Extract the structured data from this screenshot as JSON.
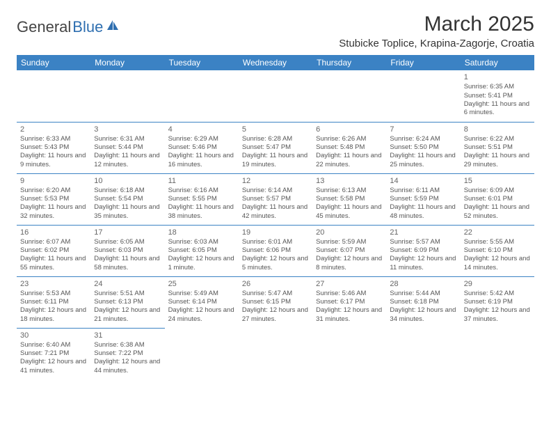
{
  "logo": {
    "part1": "General",
    "part2": "Blue"
  },
  "title": "March 2025",
  "location": "Stubicke Toplice, Krapina-Zagorje, Croatia",
  "colors": {
    "header_bg": "#3b82c4",
    "header_text": "#ffffff",
    "cell_border": "#3b82c4",
    "text": "#555555",
    "logo_blue": "#2f6fb0"
  },
  "weekdays": [
    "Sunday",
    "Monday",
    "Tuesday",
    "Wednesday",
    "Thursday",
    "Friday",
    "Saturday"
  ],
  "weeks": [
    [
      null,
      null,
      null,
      null,
      null,
      null,
      {
        "d": "1",
        "sr": "Sunrise: 6:35 AM",
        "ss": "Sunset: 5:41 PM",
        "dl": "Daylight: 11 hours and 6 minutes."
      }
    ],
    [
      {
        "d": "2",
        "sr": "Sunrise: 6:33 AM",
        "ss": "Sunset: 5:43 PM",
        "dl": "Daylight: 11 hours and 9 minutes."
      },
      {
        "d": "3",
        "sr": "Sunrise: 6:31 AM",
        "ss": "Sunset: 5:44 PM",
        "dl": "Daylight: 11 hours and 12 minutes."
      },
      {
        "d": "4",
        "sr": "Sunrise: 6:29 AM",
        "ss": "Sunset: 5:46 PM",
        "dl": "Daylight: 11 hours and 16 minutes."
      },
      {
        "d": "5",
        "sr": "Sunrise: 6:28 AM",
        "ss": "Sunset: 5:47 PM",
        "dl": "Daylight: 11 hours and 19 minutes."
      },
      {
        "d": "6",
        "sr": "Sunrise: 6:26 AM",
        "ss": "Sunset: 5:48 PM",
        "dl": "Daylight: 11 hours and 22 minutes."
      },
      {
        "d": "7",
        "sr": "Sunrise: 6:24 AM",
        "ss": "Sunset: 5:50 PM",
        "dl": "Daylight: 11 hours and 25 minutes."
      },
      {
        "d": "8",
        "sr": "Sunrise: 6:22 AM",
        "ss": "Sunset: 5:51 PM",
        "dl": "Daylight: 11 hours and 29 minutes."
      }
    ],
    [
      {
        "d": "9",
        "sr": "Sunrise: 6:20 AM",
        "ss": "Sunset: 5:53 PM",
        "dl": "Daylight: 11 hours and 32 minutes."
      },
      {
        "d": "10",
        "sr": "Sunrise: 6:18 AM",
        "ss": "Sunset: 5:54 PM",
        "dl": "Daylight: 11 hours and 35 minutes."
      },
      {
        "d": "11",
        "sr": "Sunrise: 6:16 AM",
        "ss": "Sunset: 5:55 PM",
        "dl": "Daylight: 11 hours and 38 minutes."
      },
      {
        "d": "12",
        "sr": "Sunrise: 6:14 AM",
        "ss": "Sunset: 5:57 PM",
        "dl": "Daylight: 11 hours and 42 minutes."
      },
      {
        "d": "13",
        "sr": "Sunrise: 6:13 AM",
        "ss": "Sunset: 5:58 PM",
        "dl": "Daylight: 11 hours and 45 minutes."
      },
      {
        "d": "14",
        "sr": "Sunrise: 6:11 AM",
        "ss": "Sunset: 5:59 PM",
        "dl": "Daylight: 11 hours and 48 minutes."
      },
      {
        "d": "15",
        "sr": "Sunrise: 6:09 AM",
        "ss": "Sunset: 6:01 PM",
        "dl": "Daylight: 11 hours and 52 minutes."
      }
    ],
    [
      {
        "d": "16",
        "sr": "Sunrise: 6:07 AM",
        "ss": "Sunset: 6:02 PM",
        "dl": "Daylight: 11 hours and 55 minutes."
      },
      {
        "d": "17",
        "sr": "Sunrise: 6:05 AM",
        "ss": "Sunset: 6:03 PM",
        "dl": "Daylight: 11 hours and 58 minutes."
      },
      {
        "d": "18",
        "sr": "Sunrise: 6:03 AM",
        "ss": "Sunset: 6:05 PM",
        "dl": "Daylight: 12 hours and 1 minute."
      },
      {
        "d": "19",
        "sr": "Sunrise: 6:01 AM",
        "ss": "Sunset: 6:06 PM",
        "dl": "Daylight: 12 hours and 5 minutes."
      },
      {
        "d": "20",
        "sr": "Sunrise: 5:59 AM",
        "ss": "Sunset: 6:07 PM",
        "dl": "Daylight: 12 hours and 8 minutes."
      },
      {
        "d": "21",
        "sr": "Sunrise: 5:57 AM",
        "ss": "Sunset: 6:09 PM",
        "dl": "Daylight: 12 hours and 11 minutes."
      },
      {
        "d": "22",
        "sr": "Sunrise: 5:55 AM",
        "ss": "Sunset: 6:10 PM",
        "dl": "Daylight: 12 hours and 14 minutes."
      }
    ],
    [
      {
        "d": "23",
        "sr": "Sunrise: 5:53 AM",
        "ss": "Sunset: 6:11 PM",
        "dl": "Daylight: 12 hours and 18 minutes."
      },
      {
        "d": "24",
        "sr": "Sunrise: 5:51 AM",
        "ss": "Sunset: 6:13 PM",
        "dl": "Daylight: 12 hours and 21 minutes."
      },
      {
        "d": "25",
        "sr": "Sunrise: 5:49 AM",
        "ss": "Sunset: 6:14 PM",
        "dl": "Daylight: 12 hours and 24 minutes."
      },
      {
        "d": "26",
        "sr": "Sunrise: 5:47 AM",
        "ss": "Sunset: 6:15 PM",
        "dl": "Daylight: 12 hours and 27 minutes."
      },
      {
        "d": "27",
        "sr": "Sunrise: 5:46 AM",
        "ss": "Sunset: 6:17 PM",
        "dl": "Daylight: 12 hours and 31 minutes."
      },
      {
        "d": "28",
        "sr": "Sunrise: 5:44 AM",
        "ss": "Sunset: 6:18 PM",
        "dl": "Daylight: 12 hours and 34 minutes."
      },
      {
        "d": "29",
        "sr": "Sunrise: 5:42 AM",
        "ss": "Sunset: 6:19 PM",
        "dl": "Daylight: 12 hours and 37 minutes."
      }
    ],
    [
      {
        "d": "30",
        "sr": "Sunrise: 6:40 AM",
        "ss": "Sunset: 7:21 PM",
        "dl": "Daylight: 12 hours and 41 minutes."
      },
      {
        "d": "31",
        "sr": "Sunrise: 6:38 AM",
        "ss": "Sunset: 7:22 PM",
        "dl": "Daylight: 12 hours and 44 minutes."
      },
      null,
      null,
      null,
      null,
      null
    ]
  ]
}
